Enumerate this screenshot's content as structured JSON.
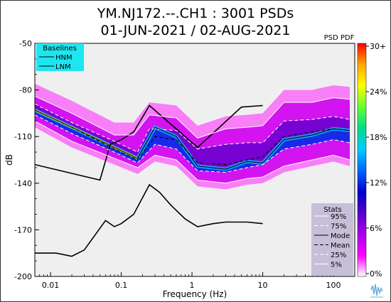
{
  "chart_data": {
    "type": "heatmap",
    "title": "YM.NJ172.--.CH1 : 3001 PSDs",
    "subtitle": "01-JUN-2021 / 02-AUG-2021",
    "xlabel": "Frequency (Hz)",
    "ylabel": "dB",
    "x_scale": "log",
    "xlim": [
      0.006,
      200
    ],
    "ylim": [
      -200,
      -50
    ],
    "x_ticks": [
      {
        "value": 0.01,
        "label": "0.01"
      },
      {
        "value": 0.1,
        "label": "0.1"
      },
      {
        "value": 1,
        "label": "1"
      },
      {
        "value": 10,
        "label": "10"
      },
      {
        "value": 100,
        "label": "100"
      }
    ],
    "y_ticks": [
      {
        "value": -50,
        "label": "-50"
      },
      {
        "value": -80,
        "label": "-80"
      },
      {
        "value": -110,
        "label": "-110"
      },
      {
        "value": -140,
        "label": "-140"
      },
      {
        "value": -170,
        "label": "-170"
      },
      {
        "value": -200,
        "label": "-200"
      }
    ],
    "colorbar": {
      "title": "PSD PDF",
      "ticks": [
        "30+",
        "24%",
        "18%",
        "12%",
        "6%",
        "0%"
      ],
      "colors": [
        "#ff0000",
        "#ffaa00",
        "#ffff00",
        "#66ff33",
        "#00dd88",
        "#00ccff",
        "#0066ff",
        "#0000cc",
        "#5500cc",
        "#aa00ee",
        "#ff00ff",
        "#ffffff"
      ]
    },
    "baselines": {
      "title": "Baselines",
      "items": [
        "HNM",
        "LNM"
      ],
      "HNM": {
        "x": [
          0.006,
          0.05,
          0.07,
          0.1,
          0.15,
          0.25,
          1.2,
          5,
          10
        ],
        "y": [
          -128,
          -138,
          -115,
          -112,
          -107,
          -90,
          -117,
          -91,
          -90
        ]
      },
      "LNM": {
        "x": [
          0.006,
          0.012,
          0.02,
          0.03,
          0.06,
          0.08,
          0.1,
          0.15,
          0.25,
          0.35,
          0.5,
          0.8,
          1.2,
          2,
          3,
          6,
          10
        ],
        "y": [
          -185,
          -185,
          -187,
          -183,
          -164,
          -168,
          -166,
          -160,
          -141,
          -146,
          -154,
          -163,
          -168,
          -166,
          -165,
          -165,
          -166
        ]
      }
    },
    "stats": {
      "title": "Stats",
      "items": [
        "95%",
        "75%",
        "Mode",
        "Mean",
        "25%",
        "5%"
      ],
      "series": [
        {
          "name": "95%",
          "x": [
            0.006,
            0.02,
            0.08,
            0.15,
            0.25,
            0.6,
            1.2,
            3,
            6,
            10,
            20,
            50,
            100,
            170
          ],
          "y": [
            -84,
            -95,
            -109,
            -109,
            -96,
            -98,
            -111,
            -105,
            -104,
            -103,
            -88,
            -88,
            -85,
            -86
          ]
        },
        {
          "name": "75%",
          "x": [
            0.006,
            0.02,
            0.08,
            0.17,
            0.25,
            0.6,
            1.2,
            3,
            6,
            10,
            20,
            50,
            100,
            170
          ],
          "y": [
            -89,
            -101,
            -113,
            -120,
            -105,
            -106,
            -118,
            -115,
            -114,
            -114,
            -100,
            -99,
            -97,
            -99
          ]
        },
        {
          "name": "Mode",
          "x": [
            0.006,
            0.02,
            0.08,
            0.17,
            0.3,
            0.6,
            1.2,
            3,
            6,
            10,
            20,
            50,
            70,
            100,
            170
          ],
          "y": [
            -93,
            -104,
            -117,
            -124,
            -104,
            -110,
            -129,
            -131,
            -126,
            -127,
            -112,
            -109,
            -107,
            -105,
            -106
          ]
        },
        {
          "name": "Mean",
          "x": [
            0.006,
            0.02,
            0.08,
            0.17,
            0.3,
            0.6,
            1.2,
            3,
            6,
            10,
            20,
            50,
            100,
            170
          ],
          "y": [
            -93,
            -104,
            -118,
            -125,
            -110,
            -112,
            -127,
            -128,
            -125,
            -123,
            -110,
            -107,
            -105,
            -106
          ]
        },
        {
          "name": "25%",
          "x": [
            0.006,
            0.02,
            0.08,
            0.17,
            0.3,
            0.6,
            1.2,
            3,
            6,
            10,
            20,
            50,
            100,
            170
          ],
          "y": [
            -96,
            -108,
            -120,
            -127,
            -115,
            -118,
            -132,
            -133,
            -130,
            -128,
            -118,
            -115,
            -112,
            -114
          ]
        },
        {
          "name": "5%",
          "x": [
            0.006,
            0.02,
            0.08,
            0.17,
            0.3,
            0.6,
            1.2,
            3,
            6,
            10,
            20,
            50,
            100,
            170
          ],
          "y": [
            -100,
            -113,
            -124,
            -130,
            -122,
            -125,
            -138,
            -140,
            -137,
            -136,
            -129,
            -125,
            -122,
            -125
          ]
        }
      ]
    }
  }
}
